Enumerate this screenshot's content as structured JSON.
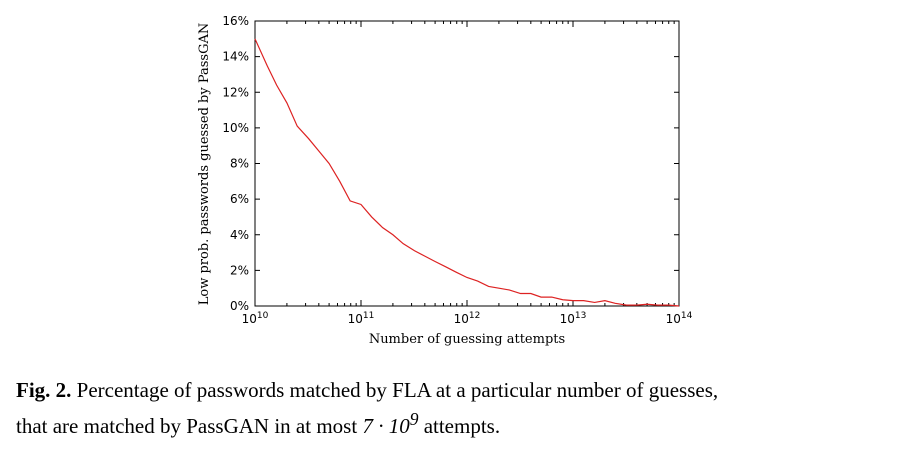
{
  "chart_data": {
    "type": "line",
    "xlabel": "Number of guessing attempts",
    "ylabel": "Low prob. passwords guessed by PassGAN",
    "xscale": "log",
    "xlim": [
      10000000000.0,
      100000000000000.0
    ],
    "ylim": [
      0,
      16
    ],
    "x_ticks": [
      {
        "base": "10",
        "exp": "10"
      },
      {
        "base": "10",
        "exp": "11"
      },
      {
        "base": "10",
        "exp": "12"
      },
      {
        "base": "10",
        "exp": "13"
      },
      {
        "base": "10",
        "exp": "14"
      }
    ],
    "y_ticks": [
      "0%",
      "2%",
      "4%",
      "6%",
      "8%",
      "10%",
      "12%",
      "14%",
      "16%"
    ],
    "line_color": "#dd2222",
    "grid": false,
    "series": [
      {
        "x": [
          10000000000.0,
          13000000000.0,
          16000000000.0,
          20000000000.0,
          25000000000.0,
          32000000000.0,
          40000000000.0,
          50000000000.0,
          63000000000.0,
          79000000000.0,
          100000000000.0,
          126000000000.0,
          160000000000.0,
          200000000000.0,
          250000000000.0,
          320000000000.0,
          400000000000.0,
          500000000000.0,
          630000000000.0,
          790000000000.0,
          1000000000000.0,
          1260000000000.0,
          1600000000000.0,
          2000000000000.0,
          2500000000000.0,
          3200000000000.0,
          4000000000000.0,
          5000000000000.0,
          6300000000000.0,
          8000000000000.0,
          10000000000000.0,
          12600000000000.0,
          16000000000000.0,
          20000000000000.0,
          25000000000000.0,
          32000000000000.0,
          40000000000000.0,
          50000000000000.0,
          63000000000000.0,
          80000000000000.0,
          100000000000000.0
        ],
        "y": [
          15.0,
          13.5,
          12.4,
          11.4,
          10.1,
          9.4,
          8.7,
          8.0,
          7.0,
          5.9,
          5.7,
          5.0,
          4.4,
          4.0,
          3.5,
          3.1,
          2.8,
          2.5,
          2.2,
          1.9,
          1.6,
          1.4,
          1.1,
          1.0,
          0.9,
          0.7,
          0.7,
          0.5,
          0.5,
          0.35,
          0.3,
          0.3,
          0.2,
          0.3,
          0.15,
          0.05,
          0.05,
          0.1,
          0.05,
          0.05,
          0.0
        ]
      }
    ]
  },
  "caption": {
    "label": "Fig. 2.",
    "line1": "Percentage of passwords matched by FLA at a particular number of guesses,",
    "line2_before": "that are matched by PassGAN in at most ",
    "formula_base": "7 · 10",
    "formula_exp": "9",
    "line2_after": " attempts."
  }
}
